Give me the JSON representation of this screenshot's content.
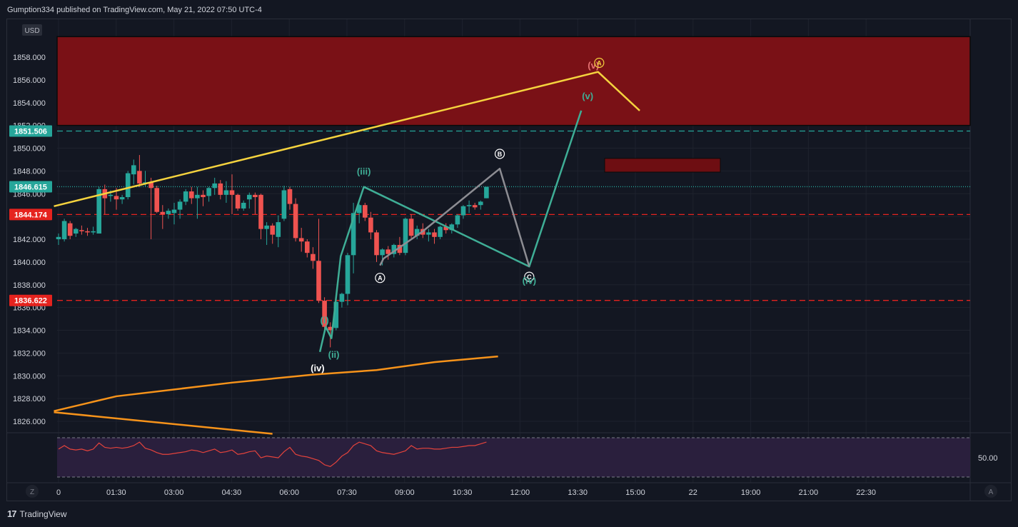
{
  "header": {
    "publisher_line": "Gumption334 published on TradingView.com, May 21, 2022 07:50 UTC-4"
  },
  "footer": {
    "logo_text": "TradingView",
    "logo_mark": "17"
  },
  "currency_badge": "USD",
  "z_button": "Z",
  "auto_button": "A",
  "colors": {
    "background": "#131722",
    "grid": "#1e222d",
    "up_candle": "#26a69a",
    "down_candle": "#ef5350",
    "resistance_zone": "#7a1116",
    "small_zone": "#6e0e12",
    "yellow_line": "#f5d33e",
    "orange_line": "#f7931a",
    "teal_wave": "#3fae96",
    "gray_wave": "#8d8d93",
    "dashed_red": "#e5231e",
    "dashed_teal": "#26a69a",
    "rsi_line": "#e5433c",
    "rsi_panel": "#2a1f3d"
  },
  "chart_data": {
    "type": "candlestick",
    "symbol_currency": "USD",
    "y_axis": {
      "ticks": [
        "1858.000",
        "1856.000",
        "1854.000",
        "1852.000",
        "1850.000",
        "1848.000",
        "1846.000",
        "1844.000",
        "1842.000",
        "1840.000",
        "1838.000",
        "1836.000",
        "1834.000",
        "1832.000",
        "1830.000",
        "1828.000",
        "1826.000"
      ],
      "ylim": [
        1825,
        1860
      ]
    },
    "x_axis": {
      "ticks": [
        "0",
        "01:30",
        "03:00",
        "04:30",
        "06:00",
        "07:30",
        "09:00",
        "10:30",
        "12:00",
        "13:30",
        "15:00",
        "22",
        "19:00",
        "21:00",
        "22:30"
      ]
    },
    "price_labels": [
      {
        "value": 1851.506,
        "text": "1851.506",
        "color": "#26a69a",
        "style": "dashed"
      },
      {
        "value": 1846.615,
        "text": "1846.615",
        "color": "#26a69a",
        "style": "dotted"
      },
      {
        "value": 1844.174,
        "text": "1844.174",
        "color": "#e5231e",
        "style": "dashed"
      },
      {
        "value": 1836.622,
        "text": "1836.622",
        "color": "#e5231e",
        "style": "dashed"
      }
    ],
    "candles": [
      [
        1842.0,
        1842.5,
        1841.5,
        1842.2
      ],
      [
        1842.0,
        1843.8,
        1841.8,
        1843.6
      ],
      [
        1843.4,
        1843.6,
        1842.0,
        1842.3
      ],
      [
        1842.5,
        1843.0,
        1842.2,
        1842.9
      ],
      [
        1842.8,
        1843.2,
        1842.4,
        1842.7
      ],
      [
        1842.7,
        1843.0,
        1842.3,
        1842.6
      ],
      [
        1842.6,
        1843.1,
        1842.4,
        1842.7
      ],
      [
        1842.5,
        1846.6,
        1842.5,
        1846.4
      ],
      [
        1846.4,
        1846.8,
        1844.2,
        1845.6
      ],
      [
        1845.8,
        1846.3,
        1845.3,
        1845.9
      ],
      [
        1845.8,
        1846.5,
        1844.6,
        1845.5
      ],
      [
        1845.5,
        1845.9,
        1845.1,
        1845.7
      ],
      [
        1845.7,
        1848.0,
        1845.5,
        1847.8
      ],
      [
        1847.7,
        1849.0,
        1846.8,
        1848.5
      ],
      [
        1848.0,
        1849.4,
        1846.6,
        1846.9
      ],
      [
        1846.9,
        1848.0,
        1846.6,
        1847.0
      ],
      [
        1847.0,
        1847.4,
        1842.0,
        1846.5
      ],
      [
        1846.5,
        1846.7,
        1844.3,
        1844.4
      ],
      [
        1844.4,
        1845.0,
        1842.9,
        1844.2
      ],
      [
        1844.2,
        1844.7,
        1843.8,
        1844.5
      ],
      [
        1844.3,
        1845.2,
        1843.3,
        1844.6
      ],
      [
        1844.6,
        1845.5,
        1843.8,
        1845.3
      ],
      [
        1845.3,
        1846.4,
        1845.0,
        1846.2
      ],
      [
        1846.2,
        1846.6,
        1845.1,
        1845.6
      ],
      [
        1845.6,
        1846.6,
        1843.8,
        1845.9
      ],
      [
        1845.9,
        1846.3,
        1844.9,
        1845.7
      ],
      [
        1845.8,
        1846.6,
        1845.3,
        1846.5
      ],
      [
        1846.5,
        1847.4,
        1845.9,
        1846.9
      ],
      [
        1846.9,
        1847.2,
        1845.5,
        1845.9
      ],
      [
        1845.9,
        1847.1,
        1845.2,
        1846.3
      ],
      [
        1846.3,
        1847.7,
        1844.2,
        1845.9
      ],
      [
        1845.9,
        1846.0,
        1844.5,
        1844.7
      ],
      [
        1844.7,
        1845.4,
        1844.5,
        1845.2
      ],
      [
        1845.5,
        1846.1,
        1844.7,
        1845.9
      ],
      [
        1845.9,
        1846.1,
        1844.2,
        1845.7
      ],
      [
        1845.9,
        1846.0,
        1842.0,
        1842.9
      ],
      [
        1842.9,
        1843.5,
        1841.5,
        1843.2
      ],
      [
        1843.2,
        1843.4,
        1841.6,
        1842.4
      ],
      [
        1842.2,
        1844.1,
        1841.3,
        1843.5
      ],
      [
        1843.8,
        1846.7,
        1843.6,
        1846.3
      ],
      [
        1846.4,
        1846.6,
        1844.6,
        1845.1
      ],
      [
        1845.1,
        1845.6,
        1841.8,
        1842.1
      ],
      [
        1842.1,
        1843.0,
        1840.9,
        1841.8
      ],
      [
        1841.8,
        1842.0,
        1840.4,
        1840.8
      ],
      [
        1840.7,
        1841.3,
        1839.4,
        1840.1
      ],
      [
        1840.1,
        1843.8,
        1836.4,
        1836.6
      ],
      [
        1836.6,
        1836.9,
        1833.9,
        1834.3
      ],
      [
        1834.3,
        1834.7,
        1832.5,
        1834.0
      ],
      [
        1834.2,
        1836.6,
        1834.0,
        1836.5
      ],
      [
        1836.5,
        1837.3,
        1836.0,
        1837.2
      ],
      [
        1837.2,
        1840.8,
        1836.2,
        1840.6
      ],
      [
        1840.6,
        1845.2,
        1839.0,
        1844.3
      ],
      [
        1844.3,
        1845.1,
        1843.4,
        1845.0
      ],
      [
        1845.0,
        1845.2,
        1843.6,
        1843.9
      ],
      [
        1843.9,
        1844.4,
        1842.0,
        1842.6
      ],
      [
        1842.6,
        1842.8,
        1840.0,
        1840.6
      ],
      [
        1840.6,
        1841.2,
        1839.7,
        1841.1
      ],
      [
        1841.1,
        1841.4,
        1840.2,
        1840.7
      ],
      [
        1840.7,
        1841.6,
        1840.4,
        1841.5
      ],
      [
        1841.5,
        1842.2,
        1840.6,
        1840.8
      ],
      [
        1840.8,
        1843.9,
        1840.6,
        1843.8
      ],
      [
        1843.8,
        1844.2,
        1842.1,
        1842.3
      ],
      [
        1842.3,
        1843.2,
        1842.0,
        1842.9
      ],
      [
        1842.9,
        1843.4,
        1842.1,
        1842.4
      ],
      [
        1842.4,
        1842.9,
        1841.8,
        1842.6
      ],
      [
        1842.6,
        1842.9,
        1841.6,
        1842.2
      ],
      [
        1842.2,
        1843.2,
        1842.0,
        1843.1
      ],
      [
        1843.1,
        1843.4,
        1842.5,
        1842.8
      ],
      [
        1842.8,
        1843.4,
        1842.5,
        1843.3
      ],
      [
        1843.3,
        1844.2,
        1843.0,
        1844.1
      ],
      [
        1844.1,
        1845.0,
        1843.8,
        1844.9
      ],
      [
        1844.9,
        1845.4,
        1844.3,
        1845.0
      ],
      [
        1845.0,
        1845.2,
        1844.6,
        1844.8
      ],
      [
        1845.0,
        1845.4,
        1844.6,
        1845.3
      ],
      [
        1845.6,
        1846.6,
        1845.6,
        1846.6
      ]
    ],
    "zones": [
      {
        "label": "resistance",
        "y_low": 1852.0,
        "y_high": 1859.8
      },
      {
        "label": "target-b",
        "y_low": 1847.9,
        "y_high": 1849.1
      }
    ],
    "annotations": [
      {
        "text": "(i)",
        "color": "#3fae96",
        "x_index": 46,
        "y": 1834.9
      },
      {
        "text": "(ii)",
        "color": "#3fae96",
        "x_index": 47.6,
        "y": 1831.9
      },
      {
        "text": "(iii)",
        "color": "#3fae96",
        "x_index": 52.8,
        "y": 1848.0
      },
      {
        "text": "(iv)",
        "color": "#ffffff",
        "x_index": 44.8,
        "y": 1830.7
      },
      {
        "text": "A",
        "color": "#ffffff",
        "x_index": 55.6,
        "y": 1838.6,
        "circled": true
      },
      {
        "text": "B",
        "color": "#ffffff",
        "x_index": 76.3,
        "y": 1849.5,
        "circled": true
      },
      {
        "text": "C",
        "color": "#ffffff",
        "x_index": 81.4,
        "y": 1838.7,
        "circled": true
      },
      {
        "text": "(iv)",
        "color": "#3fae96",
        "x_index": 81.4,
        "y": 1838.4
      },
      {
        "text": "(v)",
        "color": "#3fae96",
        "x_index": 91.5,
        "y": 1854.6
      },
      {
        "text": "(v)",
        "color": "#e57373",
        "x_index": 92.5,
        "y": 1857.3
      },
      {
        "text": "A",
        "color": "#f5d33e",
        "x_index": 93.5,
        "y": 1857.5,
        "circled": true
      }
    ],
    "rsi": {
      "label": "50.00",
      "values": [
        62,
        66,
        62,
        61,
        62,
        60,
        62,
        69,
        64,
        63,
        64,
        63,
        64,
        66,
        70,
        63,
        61,
        58,
        56,
        56,
        57,
        58,
        59,
        61,
        60,
        58,
        60,
        62,
        58,
        59,
        61,
        56,
        57,
        59,
        60,
        52,
        54,
        53,
        52,
        59,
        64,
        56,
        54,
        53,
        51,
        49,
        44,
        42,
        47,
        54,
        58,
        66,
        70,
        68,
        66,
        60,
        58,
        57,
        56,
        58,
        60,
        66,
        62,
        63,
        63,
        62,
        62,
        63,
        64,
        64,
        65,
        66,
        66,
        68,
        70
      ]
    },
    "series": [
      {
        "name": "",
        "type": "line",
        "color": "#f5d33e",
        "points": [
          [
            -0.8,
            1844.9
          ],
          [
            93.3,
            1856.7
          ],
          [
            100.5,
            1853.3
          ]
        ]
      },
      {
        "name": "",
        "type": "line",
        "color": "#f7931a",
        "points": [
          [
            -0.8,
            1826.9
          ],
          [
            10,
            1828.2
          ],
          [
            30,
            1829.4
          ],
          [
            44,
            1830.1
          ],
          [
            55,
            1830.5
          ],
          [
            65,
            1831.2
          ],
          [
            76,
            1831.7
          ]
        ]
      },
      {
        "name": "",
        "type": "line",
        "color": "#f7931a",
        "points": [
          [
            -0.8,
            1826.8
          ],
          [
            37,
            1824.9
          ]
        ]
      },
      {
        "name": "",
        "type": "line",
        "color": "#3fae96",
        "points": [
          [
            45.2,
            1832.1
          ],
          [
            46.2,
            1834.3
          ],
          [
            47.2,
            1833.3
          ],
          [
            48.8,
            1840.5
          ],
          [
            52.8,
            1846.6
          ],
          [
            81.4,
            1839.6
          ],
          [
            90.4,
            1853.3
          ]
        ]
      },
      {
        "name": "",
        "type": "line",
        "color": "#8d8d93",
        "points": [
          [
            55.6,
            1839.7
          ],
          [
            56.2,
            1840.3
          ],
          [
            63.0,
            1842.7
          ],
          [
            76.3,
            1848.2
          ],
          [
            81.4,
            1839.6
          ]
        ]
      }
    ]
  }
}
